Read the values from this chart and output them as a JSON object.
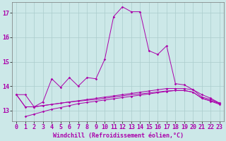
{
  "bg_color": "#cce8e8",
  "grid_color": "#aacccc",
  "line_color": "#aa00aa",
  "title": "",
  "xlabel": "Windchill (Refroidissement éolien,°C)",
  "ylabel": "",
  "xlim": [
    -0.5,
    23.5
  ],
  "ylim": [
    12.55,
    17.45
  ],
  "yticks": [
    13,
    14,
    15,
    16,
    17
  ],
  "xticks": [
    0,
    1,
    2,
    3,
    4,
    5,
    6,
    7,
    8,
    9,
    10,
    11,
    12,
    13,
    14,
    15,
    16,
    17,
    18,
    19,
    20,
    21,
    22,
    23
  ],
  "line1_x": [
    0,
    1,
    2,
    3,
    4,
    5,
    6,
    7,
    8,
    9,
    10,
    11,
    12,
    13,
    14,
    15,
    16,
    17,
    18,
    19,
    20,
    21,
    22,
    23
  ],
  "line1_y": [
    13.65,
    13.65,
    13.15,
    13.35,
    14.3,
    13.95,
    14.35,
    14.0,
    14.35,
    14.3,
    15.1,
    16.85,
    17.25,
    17.05,
    17.05,
    15.45,
    15.3,
    15.65,
    14.1,
    14.05,
    13.85,
    13.55,
    13.45,
    13.3
  ],
  "line2_x": [
    0,
    1,
    2,
    3,
    4,
    5,
    6,
    7,
    8,
    9,
    10,
    11,
    12,
    13,
    14,
    15,
    16,
    17,
    18,
    19,
    20,
    21,
    22,
    23
  ],
  "line2_y": [
    13.65,
    13.15,
    13.15,
    13.2,
    13.25,
    13.3,
    13.35,
    13.4,
    13.45,
    13.5,
    13.55,
    13.6,
    13.65,
    13.7,
    13.75,
    13.8,
    13.85,
    13.9,
    13.9,
    13.9,
    13.85,
    13.65,
    13.5,
    13.3
  ],
  "line3_x": [
    0,
    1,
    2,
    3,
    4,
    5,
    6,
    7,
    8,
    9,
    10,
    11,
    12,
    13,
    14,
    15,
    16,
    17,
    18,
    19,
    20,
    21,
    22,
    23
  ],
  "line3_y": [
    13.65,
    13.15,
    13.15,
    13.2,
    13.25,
    13.3,
    13.35,
    13.38,
    13.42,
    13.45,
    13.5,
    13.55,
    13.6,
    13.65,
    13.68,
    13.72,
    13.76,
    13.8,
    13.82,
    13.82,
    13.75,
    13.5,
    13.4,
    13.28
  ],
  "line4_x": [
    1,
    2,
    3,
    4,
    5,
    6,
    7,
    8,
    9,
    10,
    11,
    12,
    13,
    14,
    15,
    16,
    17,
    18,
    19,
    20,
    21,
    22,
    23
  ],
  "line4_y": [
    12.75,
    12.85,
    12.95,
    13.05,
    13.12,
    13.2,
    13.28,
    13.33,
    13.38,
    13.43,
    13.48,
    13.53,
    13.58,
    13.63,
    13.68,
    13.73,
    13.78,
    13.82,
    13.82,
    13.75,
    13.5,
    13.38,
    13.25
  ],
  "xlabel_fontsize": 6,
  "tick_fontsize": 6,
  "figsize": [
    3.2,
    2.0
  ],
  "dpi": 100
}
